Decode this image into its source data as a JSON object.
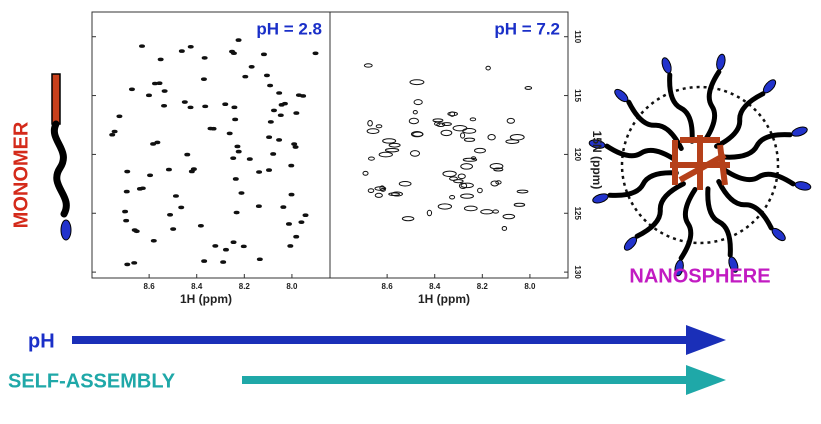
{
  "left_label": "MONOMER",
  "right_label": "NANOSPHERE",
  "arrows": [
    {
      "label": "pH"
    },
    {
      "label": "SELF-ASSEMBLY"
    }
  ],
  "spectra": {
    "xlim": [
      8.84,
      7.84
    ],
    "xticks": [
      8.6,
      8.4,
      8.2,
      {
        "value": 8,
        "label": "8.0"
      }
    ],
    "ylim": [
      107.9,
      130.5
    ],
    "yticks": [
      110,
      115,
      120,
      125,
      130
    ],
    "xlabel": "1H (ppm)",
    "ylabel": "15N (ppm)",
    "panels": [
      {
        "title": "pH = 2.8"
      },
      {
        "title": "pH = 7.2"
      }
    ]
  }
}
